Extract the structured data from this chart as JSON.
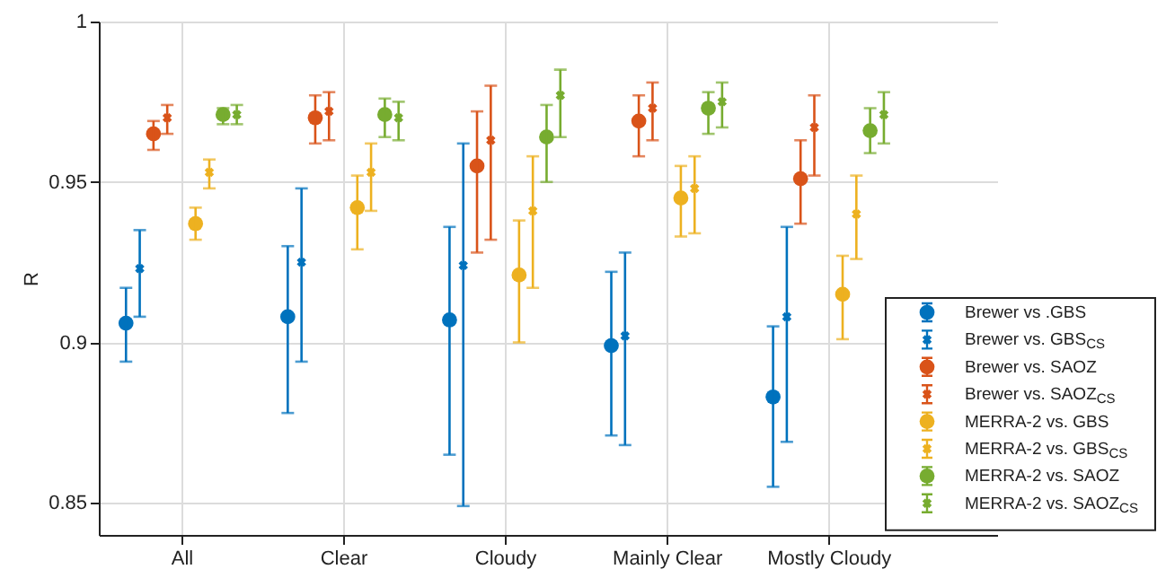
{
  "chart_data": {
    "type": "scatter",
    "ylabel": "R",
    "categories": [
      "All",
      "Clear",
      "Cloudy",
      "Mainly Clear",
      "Mostly Cloudy"
    ],
    "ylim": [
      0.84,
      1
    ],
    "yticks": [
      0.85,
      0.9,
      0.95,
      1
    ],
    "grid": true,
    "legend": "bottom right",
    "series": [
      {
        "name": "Brewer vs .GBS",
        "color": "#0072bd",
        "marker": "circle",
        "values": [
          0.906,
          0.908,
          0.907,
          0.899,
          0.883
        ],
        "errors": [
          [
            0.894,
            0.917
          ],
          [
            0.878,
            0.93
          ],
          [
            0.865,
            0.936
          ],
          [
            0.871,
            0.922
          ],
          [
            0.855,
            0.905
          ]
        ]
      },
      {
        "name": "Brewer vs. GBS$_{CS}$",
        "color": "#0072bd",
        "marker": "cross",
        "values": [
          0.923,
          0.925,
          0.924,
          0.902,
          0.908
        ],
        "errors": [
          [
            0.908,
            0.935
          ],
          [
            0.894,
            0.948
          ],
          [
            0.849,
            0.962
          ],
          [
            0.868,
            0.928
          ],
          [
            0.869,
            0.936
          ]
        ]
      },
      {
        "name": "Brewer vs. SAOZ",
        "color": "#d95319",
        "marker": "circle",
        "values": [
          0.965,
          0.97,
          0.955,
          0.969,
          0.951
        ],
        "errors": [
          [
            0.96,
            0.969
          ],
          [
            0.962,
            0.977
          ],
          [
            0.928,
            0.972
          ],
          [
            0.958,
            0.977
          ],
          [
            0.937,
            0.963
          ]
        ]
      },
      {
        "name": "Brewer vs. SAOZ$_{CS}$",
        "color": "#d95319",
        "marker": "cross",
        "values": [
          0.97,
          0.972,
          0.963,
          0.973,
          0.967
        ],
        "errors": [
          [
            0.965,
            0.974
          ],
          [
            0.963,
            0.978
          ],
          [
            0.932,
            0.98
          ],
          [
            0.963,
            0.981
          ],
          [
            0.952,
            0.977
          ]
        ]
      },
      {
        "name": "MERRA-2 vs. GBS",
        "color": "#edb120",
        "marker": "circle",
        "values": [
          0.937,
          0.942,
          0.921,
          0.945,
          0.915
        ],
        "errors": [
          [
            0.932,
            0.942
          ],
          [
            0.929,
            0.952
          ],
          [
            0.9,
            0.938
          ],
          [
            0.933,
            0.955
          ],
          [
            0.901,
            0.927
          ]
        ]
      },
      {
        "name": "MERRA-2 vs. GBS$_{CS}$",
        "color": "#edb120",
        "marker": "cross",
        "values": [
          0.953,
          0.953,
          0.941,
          0.948,
          0.94
        ],
        "errors": [
          [
            0.948,
            0.957
          ],
          [
            0.941,
            0.962
          ],
          [
            0.917,
            0.958
          ],
          [
            0.934,
            0.958
          ],
          [
            0.926,
            0.952
          ]
        ]
      },
      {
        "name": "MERRA-2 vs. SAOZ",
        "color": "#77ac30",
        "marker": "circle",
        "values": [
          0.971,
          0.971,
          0.964,
          0.973,
          0.966
        ],
        "errors": [
          [
            0.968,
            0.973
          ],
          [
            0.964,
            0.976
          ],
          [
            0.95,
            0.974
          ],
          [
            0.965,
            0.978
          ],
          [
            0.959,
            0.973
          ]
        ]
      },
      {
        "name": "MERRA-2 vs. SAOZ$_{CS}$",
        "color": "#77ac30",
        "marker": "cross",
        "values": [
          0.971,
          0.97,
          0.977,
          0.975,
          0.971
        ],
        "errors": [
          [
            0.968,
            0.974
          ],
          [
            0.963,
            0.975
          ],
          [
            0.964,
            0.985
          ],
          [
            0.967,
            0.981
          ],
          [
            0.962,
            0.978
          ]
        ]
      }
    ]
  }
}
